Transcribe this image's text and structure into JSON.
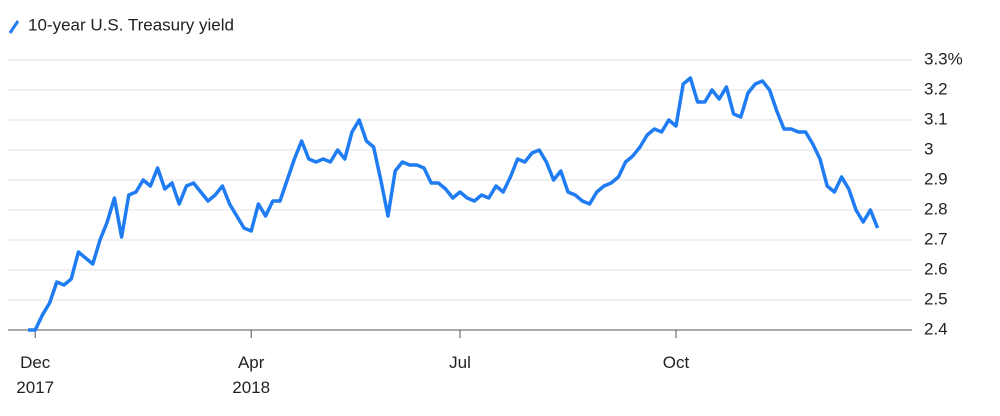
{
  "chart_data": {
    "type": "line",
    "categories": [
      null,
      "Dec 2017",
      null,
      null,
      null,
      null,
      null,
      null,
      null,
      null,
      null,
      null,
      null,
      null,
      null,
      null,
      null,
      null,
      null,
      null,
      null,
      null,
      null,
      null,
      null,
      null,
      null,
      null,
      null,
      null,
      null,
      "Apr 2018",
      null,
      null,
      null,
      null,
      null,
      null,
      null,
      null,
      null,
      null,
      null,
      null,
      null,
      null,
      null,
      null,
      null,
      null,
      null,
      null,
      null,
      null,
      null,
      null,
      null,
      null,
      null,
      null,
      "Jul",
      null,
      null,
      null,
      null,
      null,
      null,
      null,
      null,
      null,
      null,
      null,
      null,
      null,
      null,
      null,
      null,
      null,
      null,
      null,
      null,
      null,
      null,
      null,
      null,
      null,
      null,
      null,
      null,
      null,
      "Oct",
      null,
      null,
      null,
      null,
      null,
      null,
      null,
      null,
      null,
      null,
      null,
      null,
      null,
      null,
      null,
      null,
      null,
      null,
      null,
      null,
      null,
      null,
      null,
      null,
      null,
      null,
      null,
      null
    ],
    "series": [
      {
        "name": "10-year U.S. Treasury yield",
        "color": "#1f7cf2",
        "values": [
          2.4,
          2.4,
          2.45,
          2.49,
          2.56,
          2.55,
          2.57,
          2.66,
          2.64,
          2.62,
          2.7,
          2.76,
          2.84,
          2.71,
          2.85,
          2.86,
          2.9,
          2.88,
          2.94,
          2.87,
          2.89,
          2.82,
          2.88,
          2.89,
          2.86,
          2.83,
          2.85,
          2.88,
          2.82,
          2.78,
          2.74,
          2.73,
          2.82,
          2.78,
          2.83,
          2.83,
          2.9,
          2.97,
          3.03,
          2.97,
          2.96,
          2.97,
          2.96,
          3.0,
          2.97,
          3.06,
          3.1,
          3.03,
          3.01,
          2.9,
          2.78,
          2.93,
          2.96,
          2.95,
          2.95,
          2.94,
          2.89,
          2.89,
          2.87,
          2.84,
          2.86,
          2.84,
          2.83,
          2.85,
          2.84,
          2.88,
          2.86,
          2.91,
          2.97,
          2.96,
          2.99,
          3.0,
          2.96,
          2.9,
          2.93,
          2.86,
          2.85,
          2.83,
          2.82,
          2.86,
          2.88,
          2.89,
          2.91,
          2.96,
          2.98,
          3.01,
          3.05,
          3.07,
          3.06,
          3.1,
          3.08,
          3.22,
          3.24,
          3.16,
          3.16,
          3.2,
          3.17,
          3.21,
          3.12,
          3.11,
          3.19,
          3.22,
          3.23,
          3.2,
          3.13,
          3.07,
          3.07,
          3.06,
          3.06,
          3.02,
          2.97,
          2.88,
          2.86,
          2.91,
          2.87,
          2.8,
          2.76,
          2.8,
          2.74
        ]
      }
    ],
    "ylim": [
      2.4,
      3.3
    ],
    "yticks": [
      2.4,
      2.5,
      2.6,
      2.7,
      2.8,
      2.9,
      3.0,
      3.1,
      3.2,
      {
        "value": 3.3,
        "label": "3.3%"
      }
    ],
    "grid": true
  }
}
